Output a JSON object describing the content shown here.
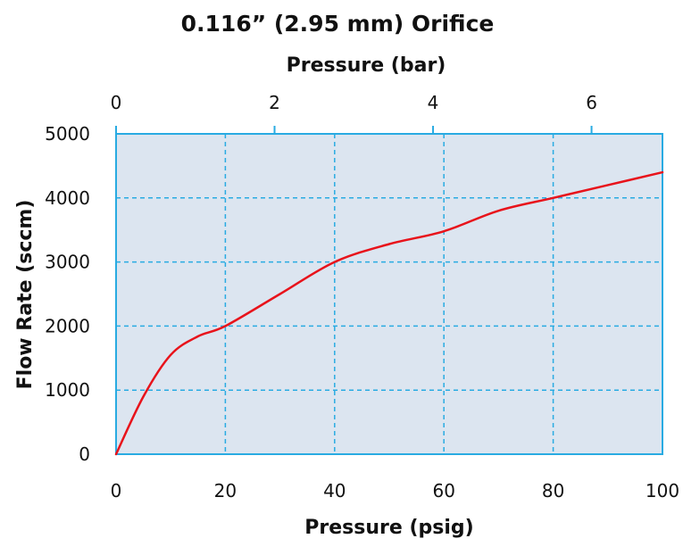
{
  "chart_data": {
    "type": "line",
    "title": "0.116” (2.95 mm) Orifice",
    "xlabel": "Pressure (psig)",
    "ylabel": "Flow Rate (sccm)",
    "x2label": "Pressure (bar)",
    "xlim": [
      0,
      100
    ],
    "ylim": [
      0,
      5000
    ],
    "x2lim": [
      0,
      6.895
    ],
    "x_ticks": [
      0,
      20,
      40,
      60,
      80,
      100
    ],
    "y_ticks": [
      0,
      1000,
      2000,
      3000,
      4000,
      5000
    ],
    "x2_ticks": [
      0,
      2,
      4,
      6
    ],
    "x_tick_labels": [
      "0",
      "20",
      "40",
      "60",
      "80",
      "100"
    ],
    "y_tick_labels": [
      "0",
      "1000",
      "2000",
      "3000",
      "4000",
      "5000"
    ],
    "x2_tick_labels": [
      "0",
      "2",
      "4",
      "6"
    ],
    "grid": true,
    "plot_background": "#dce5f0",
    "plot_border_color": "#29abe2",
    "grid_color": "#29abe2",
    "line_color": "#e8131b",
    "series": [
      {
        "x": [
          0,
          5,
          10,
          15,
          20,
          30,
          40,
          50,
          60,
          70,
          80,
          90,
          100
        ],
        "y": [
          0,
          900,
          1550,
          1840,
          2000,
          2500,
          3000,
          3280,
          3480,
          3800,
          4000,
          4200,
          4400
        ]
      }
    ]
  }
}
